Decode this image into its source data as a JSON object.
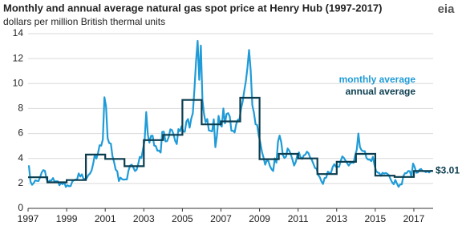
{
  "chart_data": {
    "type": "line",
    "title": "Monthly and annual average natural gas spot price at Henry Hub (1997-2017)",
    "subtitle": "dollars per million British thermal units",
    "logo": "eia",
    "xlim": [
      1997,
      2018
    ],
    "xticks": [
      1997,
      1999,
      2001,
      2003,
      2005,
      2007,
      2009,
      2011,
      2013,
      2015,
      2017
    ],
    "ylim": [
      0,
      14
    ],
    "yticks": [
      0,
      2,
      4,
      6,
      8,
      10,
      12,
      14
    ],
    "grid": true,
    "x": [
      1997,
      1998,
      1999,
      2000,
      2001,
      2002,
      2003,
      2004,
      2005,
      2006,
      2007,
      2008,
      2009,
      2010,
      2011,
      2012,
      2013,
      2014,
      2015,
      2016,
      2017
    ],
    "series": [
      {
        "name": "monthly average",
        "color": "#1f9bd7",
        "style": "monthly",
        "values": [
          [
            3.45,
            2.15,
            1.89,
            2.03,
            2.25,
            2.2,
            2.19,
            2.49,
            2.88,
            3.07,
            3.01,
            2.35
          ],
          [
            2.09,
            2.23,
            2.24,
            2.43,
            2.14,
            2.17,
            2.17,
            1.85,
            2.03,
            1.94,
            2.09,
            1.72
          ],
          [
            1.85,
            1.77,
            1.79,
            2.15,
            2.26,
            2.3,
            2.31,
            2.8,
            2.55,
            2.73,
            2.37,
            2.36
          ],
          [
            2.42,
            2.66,
            2.79,
            3.04,
            3.59,
            4.29,
            3.99,
            4.43,
            5.06,
            5.02,
            5.52,
            8.9
          ],
          [
            8.17,
            5.61,
            5.23,
            5.19,
            4.19,
            3.72,
            3.11,
            2.97,
            2.19,
            2.46,
            2.34,
            2.3
          ],
          [
            2.32,
            2.32,
            3.03,
            3.43,
            3.5,
            3.26,
            2.99,
            3.09,
            3.55,
            4.13,
            4.04,
            4.74
          ],
          [
            5.43,
            7.71,
            5.93,
            5.26,
            5.81,
            5.82,
            5.03,
            4.99,
            4.62,
            4.63,
            4.47,
            6.13
          ],
          [
            6.14,
            5.37,
            5.39,
            5.71,
            6.33,
            6.27,
            5.93,
            5.41,
            5.15,
            6.35,
            6.17,
            6.58
          ],
          [
            6.15,
            6.14,
            6.96,
            7.16,
            6.47,
            7.18,
            7.63,
            9.53,
            11.75,
            13.42,
            10.3,
            13.05
          ],
          [
            8.69,
            7.54,
            6.89,
            7.16,
            6.25,
            6.21,
            6.17,
            7.14,
            4.9,
            5.85,
            7.41,
            6.73
          ],
          [
            6.55,
            8.0,
            6.81,
            7.57,
            7.63,
            7.35,
            6.22,
            6.22,
            6.08,
            6.74,
            7.1,
            7.11
          ],
          [
            7.99,
            8.54,
            9.41,
            10.18,
            11.27,
            12.69,
            11.09,
            8.26,
            7.67,
            6.74,
            6.68,
            5.82
          ],
          [
            5.24,
            4.52,
            4.06,
            3.5,
            3.83,
            3.8,
            3.38,
            3.14,
            2.99,
            4.01,
            3.66,
            5.35
          ],
          [
            5.83,
            5.32,
            4.29,
            4.03,
            4.14,
            4.8,
            4.63,
            4.32,
            3.89,
            3.43,
            3.71,
            4.25
          ],
          [
            4.49,
            4.09,
            3.97,
            4.24,
            4.31,
            4.54,
            4.42,
            4.06,
            3.9,
            3.57,
            3.24,
            3.17
          ],
          [
            2.67,
            2.5,
            2.17,
            1.95,
            2.43,
            2.46,
            2.95,
            2.84,
            2.85,
            3.32,
            3.54,
            3.34
          ],
          [
            3.33,
            3.33,
            3.81,
            4.17,
            4.04,
            3.83,
            3.62,
            3.43,
            3.62,
            3.68,
            3.64,
            4.24
          ],
          [
            4.71,
            6.0,
            4.9,
            4.66,
            4.58,
            4.59,
            4.05,
            3.91,
            3.92,
            3.78,
            4.12,
            3.48
          ],
          [
            2.99,
            2.87,
            2.83,
            2.61,
            2.85,
            2.78,
            2.84,
            2.77,
            2.66,
            2.34,
            2.09,
            1.93
          ],
          [
            2.28,
            1.99,
            1.73,
            1.92,
            1.92,
            2.59,
            2.82,
            2.82,
            2.99,
            2.98,
            2.55,
            3.59
          ],
          [
            3.3,
            2.85,
            2.88,
            3.1,
            3.15,
            2.98,
            2.98,
            2.9,
            2.98,
            2.88,
            3.01,
            3.01
          ]
        ]
      },
      {
        "name": "annual average",
        "color": "#0b3d4f",
        "style": "annual",
        "values": [
          2.49,
          2.09,
          2.27,
          4.31,
          3.96,
          3.38,
          5.47,
          5.89,
          8.69,
          6.73,
          6.97,
          8.86,
          3.94,
          4.37,
          4.0,
          2.75,
          3.73,
          4.37,
          2.62,
          2.52,
          2.99
        ]
      }
    ],
    "end_label": {
      "value": 3.01,
      "label": "$3.01"
    }
  }
}
